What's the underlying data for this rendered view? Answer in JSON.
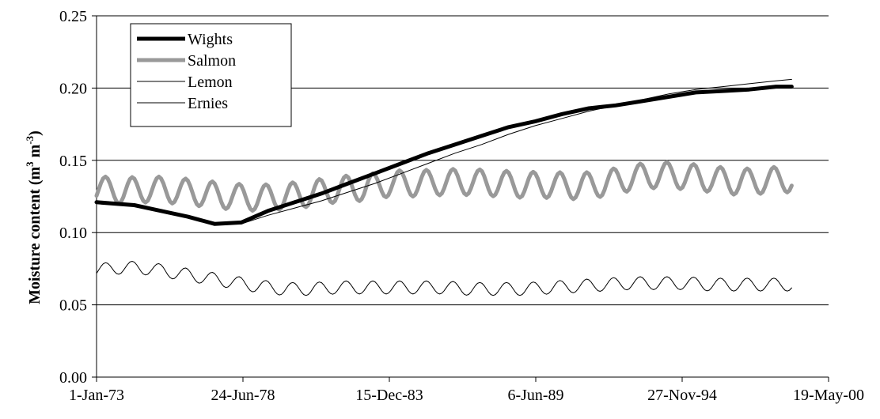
{
  "chart_data": {
    "type": "line",
    "title": "",
    "xlabel": "",
    "ylabel": "Moisture content (m³ m⁻³)",
    "ylabel_parts": {
      "main": "Moisture content (m",
      "sup1": "3",
      "mid": " m",
      "sup2": "-3",
      "end": ")"
    },
    "x_tick_labels": [
      "1-Jan-73",
      "24-Jun-78",
      "15-Dec-83",
      "6-Jun-89",
      "27-Nov-94",
      "19-May-00"
    ],
    "y_tick_labels": [
      "0.00",
      "0.05",
      "0.10",
      "0.15",
      "0.20",
      "0.25"
    ],
    "y_ticks": [
      0.0,
      0.05,
      0.1,
      0.15,
      0.2,
      0.25
    ],
    "xlim": [
      "1973-01-01",
      "2000-05-19"
    ],
    "ylim": [
      0,
      0.25
    ],
    "grid": "horizontal",
    "legend_position": "top-left",
    "series": [
      {
        "name": "Wights",
        "color": "#000000",
        "style": "thick",
        "x": [
          "1973-01-01",
          "1974-06-01",
          "1975-06-01",
          "1976-06-01",
          "1977-06-01",
          "1978-06-01",
          "1979-06-01",
          "1980-06-01",
          "1981-06-01",
          "1982-06-01",
          "1983-06-01",
          "1984-06-01",
          "1985-06-01",
          "1986-06-01",
          "1987-06-01",
          "1988-06-01",
          "1989-06-01",
          "1990-06-01",
          "1991-06-01",
          "1992-06-01",
          "1993-06-01",
          "1994-06-01",
          "1995-06-01",
          "1996-06-01",
          "1997-06-01",
          "1998-06-01",
          "1999-01-01"
        ],
        "y": [
          0.121,
          0.119,
          0.115,
          0.111,
          0.106,
          0.107,
          0.115,
          0.121,
          0.127,
          0.134,
          0.141,
          0.148,
          0.155,
          0.161,
          0.167,
          0.173,
          0.177,
          0.182,
          0.186,
          0.188,
          0.191,
          0.194,
          0.197,
          0.198,
          0.199,
          0.201,
          0.201
        ]
      },
      {
        "name": "Salmon",
        "color": "#999999",
        "style": "thick",
        "periodic": {
          "base": [
            0.13,
            0.129,
            0.13,
            0.129,
            0.127,
            0.125,
            0.124,
            0.125,
            0.127,
            0.13,
            0.131,
            0.134,
            0.134,
            0.135,
            0.135,
            0.134,
            0.133,
            0.133,
            0.132,
            0.134,
            0.138,
            0.14,
            0.139,
            0.137,
            0.135,
            0.136,
            0.137,
            0.137
          ],
          "amplitude": 0.009
        }
      },
      {
        "name": "Lemon",
        "color": "#000000",
        "style": "thin",
        "x": [
          "1973-01-01",
          "1974-06-01",
          "1975-06-01",
          "1976-06-01",
          "1977-06-01",
          "1978-06-01",
          "1979-06-01",
          "1980-06-01",
          "1981-06-01",
          "1982-06-01",
          "1983-06-01",
          "1984-06-01",
          "1985-06-01",
          "1986-06-01",
          "1987-06-01",
          "1988-06-01",
          "1989-06-01",
          "1990-06-01",
          "1991-06-01",
          "1992-06-01",
          "1993-06-01",
          "1994-06-01",
          "1995-06-01",
          "1996-06-01",
          "1997-06-01",
          "1998-06-01",
          "1999-01-01"
        ],
        "y": [
          0.121,
          0.119,
          0.115,
          0.111,
          0.106,
          0.106,
          0.112,
          0.117,
          0.122,
          0.128,
          0.134,
          0.141,
          0.148,
          0.155,
          0.161,
          0.168,
          0.174,
          0.179,
          0.184,
          0.188,
          0.192,
          0.196,
          0.199,
          0.201,
          0.203,
          0.205,
          0.206
        ]
      },
      {
        "name": "Ernies",
        "color": "#000000",
        "style": "thin",
        "periodic": {
          "base": [
            0.074,
            0.076,
            0.075,
            0.072,
            0.069,
            0.066,
            0.063,
            0.061,
            0.061,
            0.062,
            0.062,
            0.062,
            0.062,
            0.062,
            0.061,
            0.061,
            0.061,
            0.062,
            0.063,
            0.064,
            0.065,
            0.065,
            0.065,
            0.064,
            0.064,
            0.064,
            0.064,
            0.064
          ],
          "amplitude": 0.0045
        }
      }
    ]
  }
}
